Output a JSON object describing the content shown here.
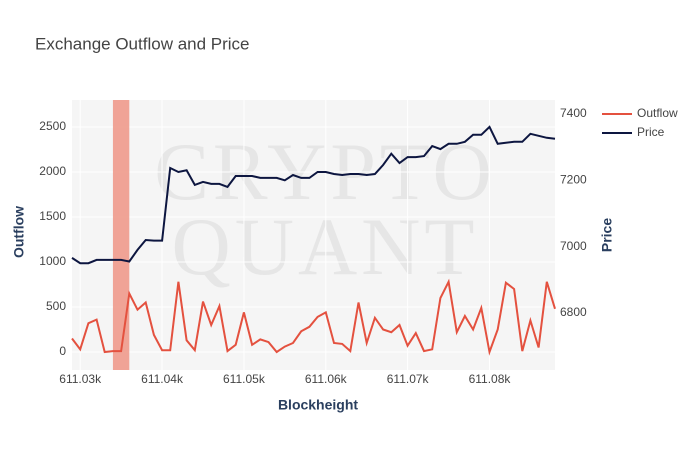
{
  "chart_data": {
    "type": "line",
    "title": "Exchange Outflow and Price",
    "x_label": "Blockheight",
    "y_label": "Outflow",
    "y2_label": "Price",
    "watermark": [
      "CRYPTO",
      "QUANT"
    ],
    "x": [
      611029,
      611030,
      611031,
      611032,
      611033,
      611034,
      611035,
      611036,
      611037,
      611038,
      611039,
      611040,
      611041,
      611042,
      611043,
      611044,
      611045,
      611046,
      611047,
      611048,
      611049,
      611050,
      611051,
      611052,
      611053,
      611054,
      611055,
      611056,
      611057,
      611058,
      611059,
      611060,
      611061,
      611062,
      611063,
      611064,
      611065,
      611066,
      611067,
      611068,
      611069,
      611070,
      611071,
      611072,
      611073,
      611074,
      611075,
      611076,
      611077,
      611078,
      611079,
      611080,
      611081,
      611082,
      611083,
      611084,
      611085,
      611086,
      611087,
      611088
    ],
    "series": [
      {
        "name": "Outflow",
        "color": "#e4513f",
        "values": [
          150,
          30,
          320,
          360,
          0,
          10,
          10,
          650,
          470,
          550,
          190,
          20,
          20,
          780,
          130,
          20,
          560,
          300,
          510,
          10,
          80,
          440,
          80,
          140,
          110,
          0,
          60,
          100,
          230,
          280,
          390,
          440,
          100,
          90,
          10,
          550,
          100,
          380,
          250,
          220,
          300,
          70,
          210,
          10,
          30,
          600,
          780,
          220,
          400,
          250,
          490,
          0,
          250,
          770,
          700,
          10,
          350,
          50,
          780,
          480
        ]
      },
      {
        "name": "Price",
        "color": "#0d1640",
        "axis": "y2",
        "values": [
          6966,
          6950,
          6950,
          6960,
          6960,
          6960,
          6960,
          6955,
          6990,
          7020,
          7018,
          7018,
          7237,
          7225,
          7230,
          7186,
          7195,
          7189,
          7189,
          7180,
          7213,
          7213,
          7213,
          7207,
          7207,
          7207,
          7200,
          7216,
          7207,
          7207,
          7225,
          7225,
          7219,
          7216,
          7219,
          7219,
          7216,
          7219,
          7246,
          7280,
          7252,
          7270,
          7270,
          7273,
          7303,
          7294,
          7310,
          7310,
          7316,
          7337,
          7337,
          7361,
          7310,
          7313,
          7316,
          7316,
          7340,
          7334,
          7328,
          7325
        ]
      }
    ],
    "shaded_range": {
      "x0": 611034,
      "x1": 611036,
      "color": "#ef9a8c"
    },
    "xlim": [
      611029,
      611088
    ],
    "xticks": [
      {
        "value": 611030,
        "label": "611.03k"
      },
      {
        "value": 611040,
        "label": "611.04k"
      },
      {
        "value": 611050,
        "label": "611.05k"
      },
      {
        "value": 611060,
        "label": "611.06k"
      },
      {
        "value": 611070,
        "label": "611.07k"
      },
      {
        "value": 611080,
        "label": "611.08k"
      }
    ],
    "ylim": [
      -200,
      2800
    ],
    "yticks": [
      0,
      500,
      1000,
      1500,
      2000,
      2500
    ],
    "y2lim": [
      6628,
      7442
    ],
    "y2ticks": [
      6800,
      7000,
      7200,
      7400
    ],
    "grid": true,
    "legend": "top-right"
  }
}
